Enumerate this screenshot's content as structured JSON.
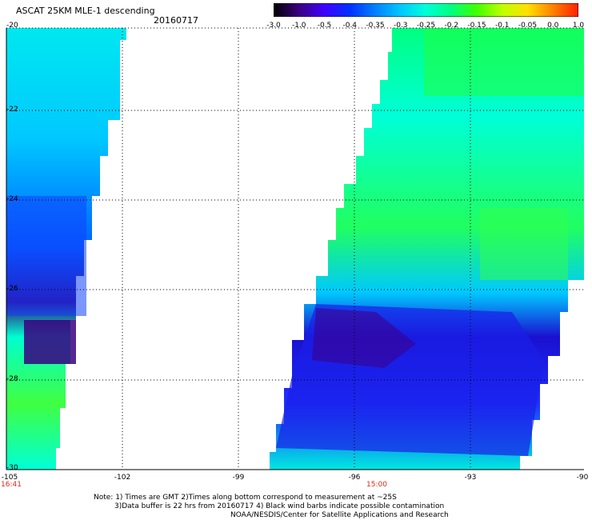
{
  "title": "ASCAT 25KM MLE-1 descending",
  "date": "20160717",
  "colorbar": {
    "labels": [
      "-3.0",
      "-1.0",
      "-0.5",
      "-0.4",
      "-0.35",
      "-0.3",
      "-0.25",
      "-0.2",
      "-0.15",
      "-0.1",
      "-0.05",
      "0.0",
      "1.0"
    ],
    "colors": [
      "#000000",
      "#3a0080",
      "#3f00ff",
      "#0030ff",
      "#0080ff",
      "#00c8ff",
      "#00ffd8",
      "#00ff80",
      "#40ff00",
      "#c0ff00",
      "#ffe000",
      "#ff8000",
      "#ff2000"
    ]
  },
  "axes": {
    "lat_labels": [
      "-20",
      "-22",
      "-24",
      "-26",
      "-28",
      "-30"
    ],
    "lon_labels": [
      "-105",
      "-102",
      "-99",
      "-96",
      "-93",
      "-90"
    ]
  },
  "times": [
    "16:41",
    "15:00"
  ],
  "note": {
    "line1": "Note: 1) Times are GMT 2)Times along bottom correspond to measurement at ~25S",
    "line2": "3)Data buffer is 22 hrs from 20160717 4) Black wind barbs indicate possible contamination",
    "line3": "NOAA/NESDIS/Center for Satellite Applications and Research"
  },
  "colors": {
    "dark_purple": "#3a0080",
    "blue": "#1020ff",
    "light_blue": "#00b4ff",
    "cyan": "#00ffe8",
    "green": "#20ff40",
    "red_text": "#e0261b"
  }
}
